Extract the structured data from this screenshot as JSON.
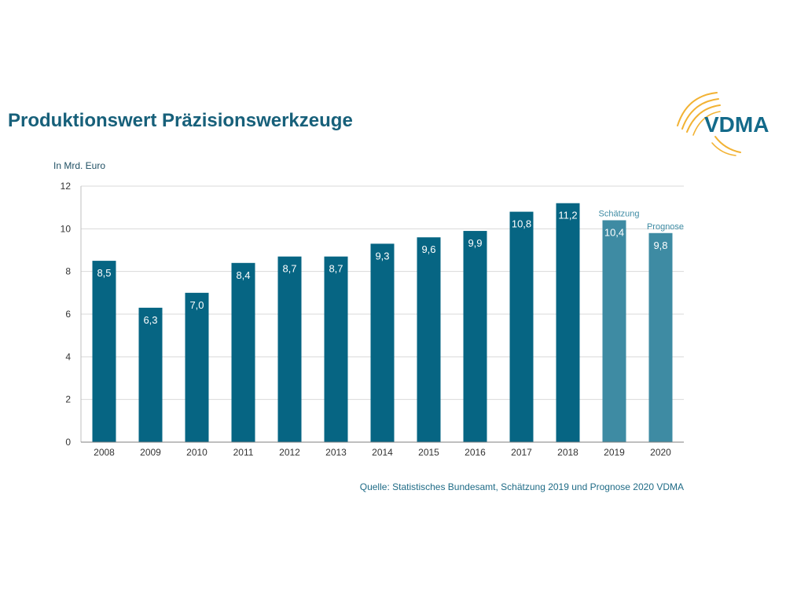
{
  "header": {
    "title": "Produktionswert Präzisionswerkzeuge",
    "logo_text": "VDMA"
  },
  "source_note": "Quelle: Statistisches Bundesamt, Schätzung 2019 und Prognose 2020 VDMA",
  "colors": {
    "bar_actual": "#066583",
    "bar_forecast": "#3e8ba3",
    "title": "#17607a",
    "logo_text": "#136a8a",
    "logo_arcs": "#f2b233",
    "grid": "#d9d9d9"
  },
  "chart_data": {
    "type": "bar",
    "title": "Produktionswert Präzisionswerkzeuge",
    "ylabel": "In Mrd. Euro",
    "xlabel": "",
    "ylim": [
      0,
      12
    ],
    "yticks": [
      0,
      2,
      4,
      6,
      8,
      10,
      12
    ],
    "grid": true,
    "categories": [
      "2008",
      "2009",
      "2010",
      "2011",
      "2012",
      "2013",
      "2014",
      "2015",
      "2016",
      "2017",
      "2018",
      "2019",
      "2020"
    ],
    "values": [
      8.5,
      6.3,
      7.0,
      8.4,
      8.7,
      8.7,
      9.3,
      9.6,
      9.9,
      10.8,
      11.2,
      10.4,
      9.8
    ],
    "data_labels": [
      "8,5",
      "6,3",
      "7,0",
      "8,4",
      "8,7",
      "8,7",
      "9,3",
      "9,6",
      "9,9",
      "10,8",
      "11,2",
      "10,4",
      "9,8"
    ],
    "annotations": [
      {
        "category": "2019",
        "text": "Schätzung"
      },
      {
        "category": "2020",
        "text": "Prognose"
      }
    ]
  }
}
